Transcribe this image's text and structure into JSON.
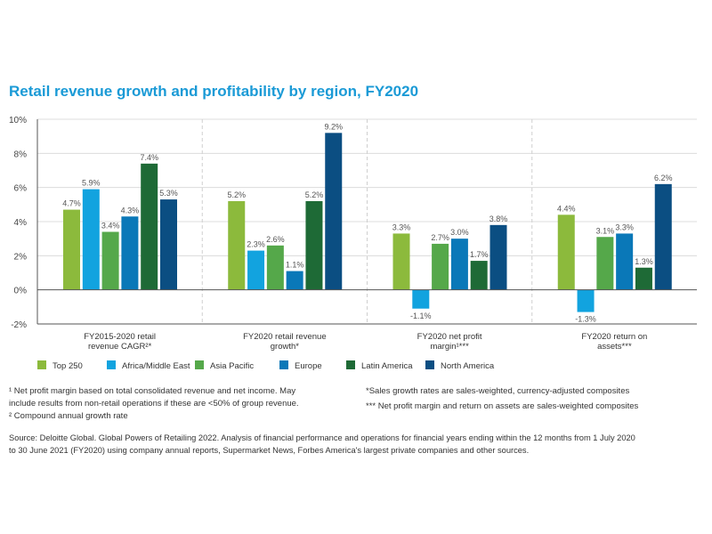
{
  "title": "Retail revenue growth and profitability by region, FY2020",
  "chart_data": {
    "type": "bar",
    "title": "Retail revenue growth and profitability by region, FY2020",
    "ylim": [
      -2,
      10
    ],
    "yticks": [
      "10%",
      "8%",
      "6%",
      "4%",
      "2%",
      "0%",
      "-2%"
    ],
    "ytick_values": [
      10,
      8,
      6,
      4,
      2,
      0,
      -2
    ],
    "grid": true,
    "legend_position": "bottom",
    "categories": [
      [
        "FY2015-2020 retail",
        "revenue CAGR²*"
      ],
      [
        "FY2020 retail revenue",
        "growth*"
      ],
      [
        "FY2020 net profit",
        "margin¹***"
      ],
      [
        "FY2020 return on",
        "assets***"
      ]
    ],
    "series": [
      {
        "name": "Top 250",
        "color": "#8cba3c",
        "values": [
          4.7,
          5.2,
          3.3,
          4.4
        ],
        "labels": [
          "4.7%",
          "5.2%",
          "3.3%",
          "4.4%"
        ]
      },
      {
        "name": "Africa/Middle East",
        "color": "#12a3df",
        "values": [
          5.9,
          2.3,
          -1.1,
          -1.3
        ],
        "labels": [
          "5.9%",
          "2.3%",
          "-1.1%",
          "-1.3%"
        ]
      },
      {
        "name": "Asia Pacific",
        "color": "#55a84a",
        "values": [
          3.4,
          2.6,
          2.7,
          3.1
        ],
        "labels": [
          "3.4%",
          "2.6%",
          "2.7%",
          "3.1%"
        ]
      },
      {
        "name": "Europe",
        "color": "#0a78b8",
        "values": [
          4.3,
          1.1,
          3.0,
          3.3
        ],
        "labels": [
          "4.3%",
          "1.1%",
          "3.0%",
          "3.3%"
        ]
      },
      {
        "name": "Latin America",
        "color": "#1e6a36",
        "values": [
          7.4,
          5.2,
          1.7,
          1.3
        ],
        "labels": [
          "7.4%",
          "5.2%",
          "1.7%",
          "1.3%"
        ]
      },
      {
        "name": "North America",
        "color": "#0b4e82",
        "values": [
          5.3,
          9.2,
          3.8,
          6.2
        ],
        "labels": [
          "5.3%",
          "9.2%",
          "3.8%",
          "6.2%"
        ]
      }
    ]
  },
  "notes": {
    "footnote1_a": "¹ Net profit margin based on total consolidated revenue and net income. May",
    "footnote1_b": "include results from non-retail operations if these are <50% of group revenue.",
    "footnote2": "² Compound annual growth rate",
    "asterisk1": "*Sales growth rates are sales-weighted, currency-adjusted composites",
    "asterisk3": "*** Net profit margin and return on assets are sales-weighted composites",
    "source_a": "Source: Deloitte Global. Global Powers of Retailing 2022. Analysis of financial performance and operations for financial years ending within the 12 months from 1 July 2020",
    "source_b": "to 30 June 2021 (FY2020) using company annual reports, Supermarket News, Forbes America's largest private companies and other sources."
  }
}
